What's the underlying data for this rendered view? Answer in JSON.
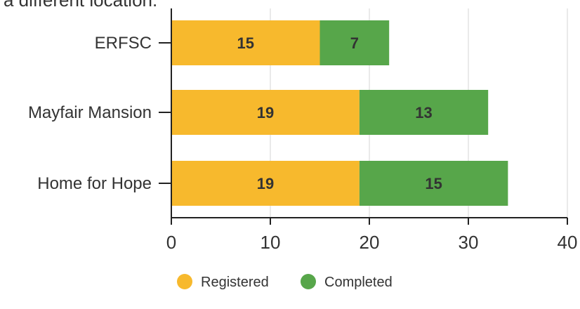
{
  "header_text": "a different location.",
  "colors": {
    "registered": "#f7b92d",
    "completed": "#57a64a",
    "grid": "#e3e3e3",
    "axis": "#222222"
  },
  "chart_data": {
    "type": "bar",
    "orientation": "horizontal",
    "stacked": true,
    "categories": [
      "ERFSC",
      "Mayfair Mansion",
      "Home for Hope"
    ],
    "series": [
      {
        "name": "Registered",
        "values": [
          15,
          19,
          19
        ]
      },
      {
        "name": "Completed",
        "values": [
          7,
          13,
          15
        ]
      }
    ],
    "xlim": [
      0,
      40
    ],
    "xticks": [
      0,
      10,
      20,
      30,
      40
    ],
    "grid": true,
    "legend": "bottom-center",
    "data_labels": true
  }
}
